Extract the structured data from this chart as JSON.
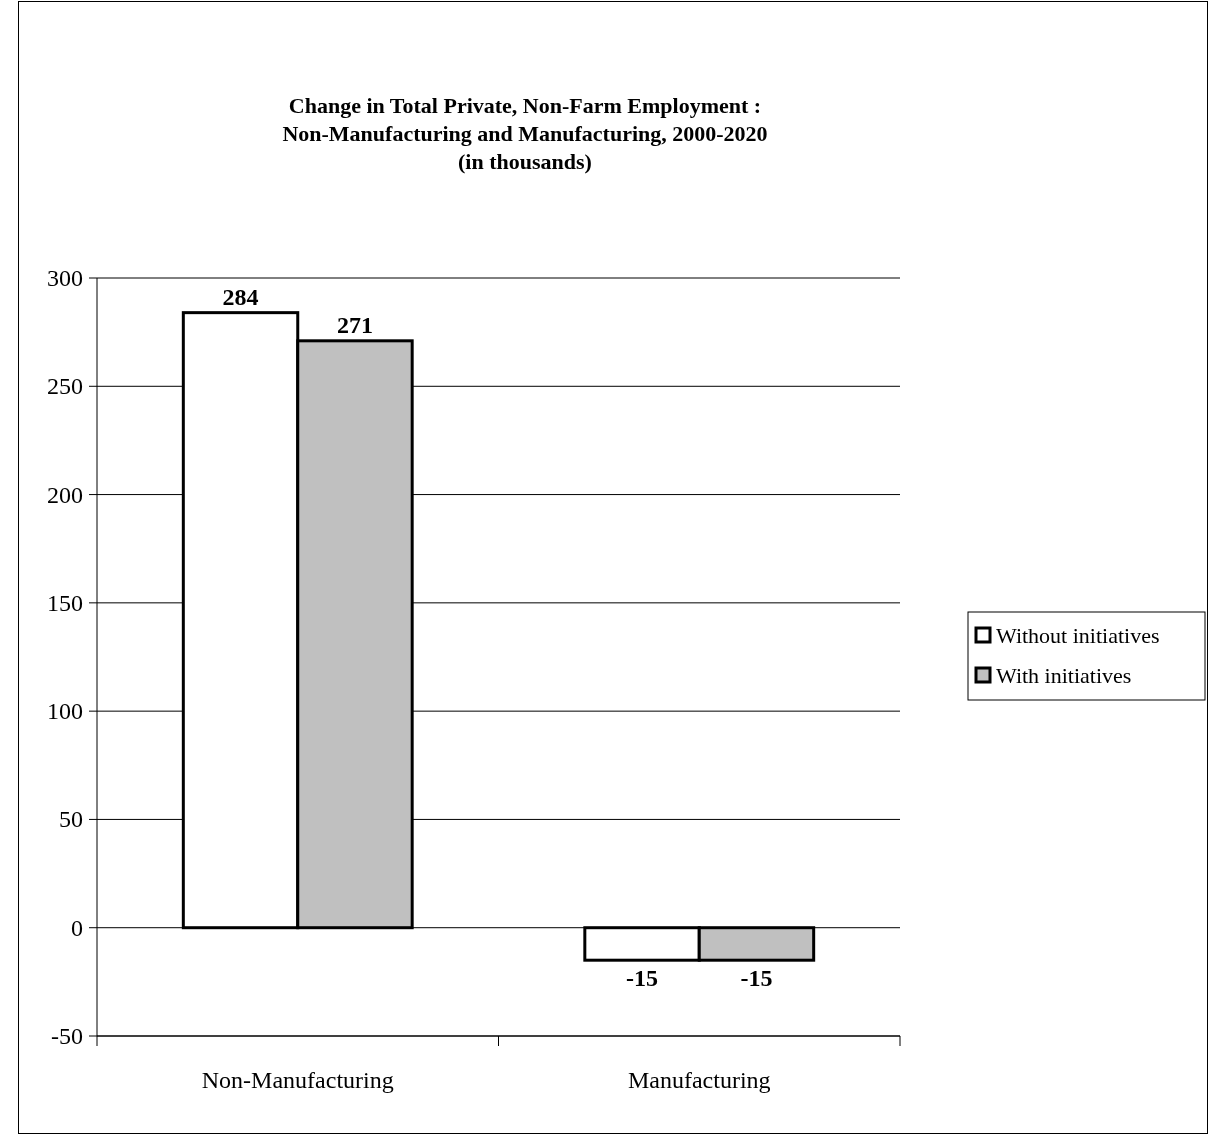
{
  "chart_data": {
    "type": "bar",
    "title": "Change in Total Private, Non-Farm Employment :\nNon-Manufacturing and Manufacturing, 2000-2020\n(in thousands)",
    "categories": [
      "Non-Manufacturing",
      "Manufacturing"
    ],
    "series": [
      {
        "name": "Without initiatives",
        "color": "#ffffff",
        "values": [
          284,
          -15
        ]
      },
      {
        "name": "With initiatives",
        "color": "#c0c0c0",
        "values": [
          271,
          -15
        ]
      }
    ],
    "ylim": [
      -50,
      300
    ],
    "yticks": [
      -50,
      0,
      50,
      100,
      150,
      200,
      250,
      300
    ],
    "grid": "y",
    "legend": "right",
    "data_labels": true
  }
}
